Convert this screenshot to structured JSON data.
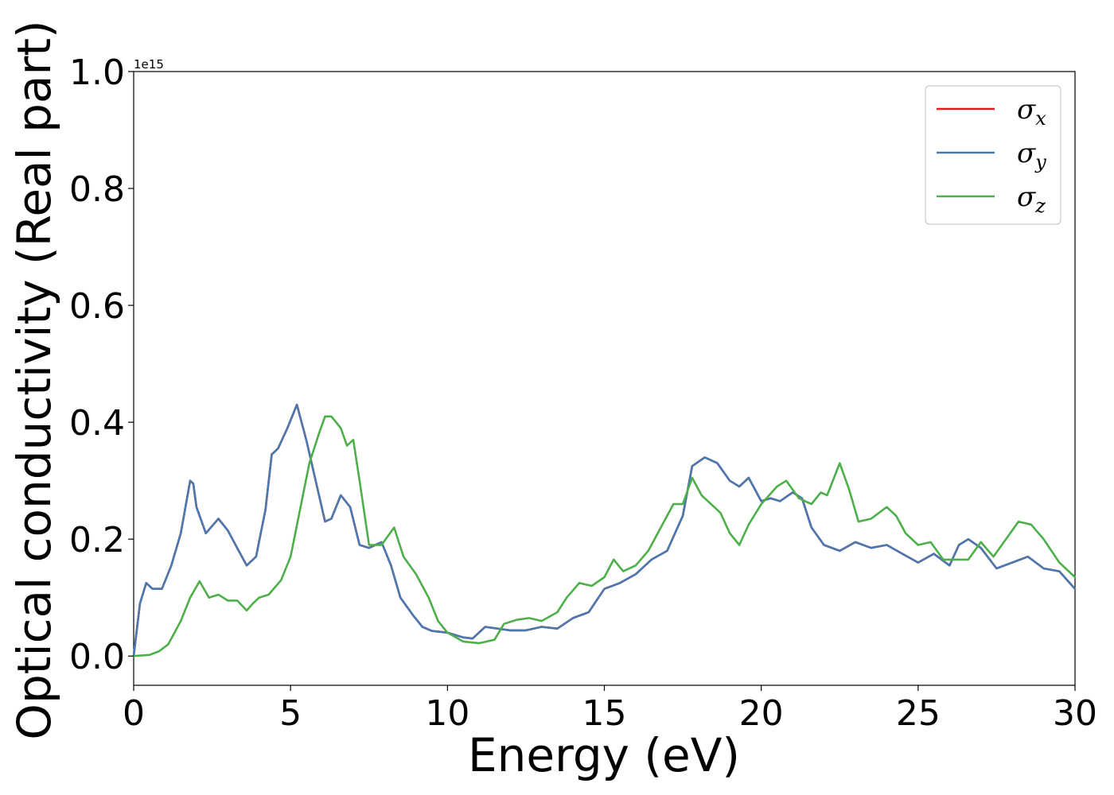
{
  "chart_data": {
    "type": "line",
    "xlabel": "Energy (eV)",
    "ylabel": "Optical conductivity (Real part)",
    "y_offset_text": "1e15",
    "xlim": [
      0,
      30
    ],
    "ylim": [
      -0.05,
      1.0
    ],
    "xticks": [
      0,
      5,
      10,
      15,
      20,
      25,
      30
    ],
    "xtick_labels": [
      "0",
      "5",
      "10",
      "15",
      "20",
      "25",
      "30"
    ],
    "yticks": [
      0.0,
      0.2,
      0.4,
      0.6,
      0.8,
      1.0
    ],
    "ytick_labels": [
      "0.0",
      "0.2",
      "0.4",
      "0.6",
      "0.8",
      "1.0"
    ],
    "grid": false,
    "legend_position": "top-right",
    "series": [
      {
        "name": "σ",
        "subscript": "x",
        "color": "#e41a1c",
        "x": [
          0,
          0.2,
          0.4,
          0.6,
          0.9,
          1.2,
          1.5,
          1.8,
          1.9,
          2.0,
          2.3,
          2.7,
          3.0,
          3.3,
          3.6,
          3.9,
          4.2,
          4.4,
          4.6,
          4.9,
          5.2,
          5.5,
          5.8,
          6.1,
          6.3,
          6.6,
          6.9,
          7.2,
          7.5,
          7.9,
          8.2,
          8.5,
          8.9,
          9.2,
          9.5,
          10.0,
          10.5,
          10.8,
          11.2,
          11.6,
          12.0,
          12.5,
          13.0,
          13.5,
          14.0,
          14.5,
          15.0,
          15.5,
          16.0,
          16.5,
          17.0,
          17.5,
          17.8,
          18.2,
          18.6,
          19.0,
          19.3,
          19.6,
          20.0,
          20.3,
          20.6,
          21.0,
          21.3,
          21.6,
          22.0,
          22.5,
          23.0,
          23.5,
          24.0,
          24.5,
          25.0,
          25.5,
          26.0,
          26.3,
          26.6,
          27.0,
          27.5,
          28.0,
          28.5,
          29.0,
          29.5,
          30.0
        ],
        "values": [
          0.0,
          0.09,
          0.125,
          0.115,
          0.115,
          0.155,
          0.21,
          0.3,
          0.295,
          0.255,
          0.21,
          0.235,
          0.215,
          0.185,
          0.155,
          0.17,
          0.25,
          0.345,
          0.355,
          0.39,
          0.43,
          0.37,
          0.3,
          0.23,
          0.235,
          0.275,
          0.255,
          0.19,
          0.185,
          0.195,
          0.155,
          0.1,
          0.07,
          0.05,
          0.043,
          0.04,
          0.032,
          0.03,
          0.05,
          0.047,
          0.044,
          0.044,
          0.05,
          0.047,
          0.065,
          0.075,
          0.115,
          0.125,
          0.14,
          0.165,
          0.18,
          0.24,
          0.325,
          0.34,
          0.33,
          0.3,
          0.29,
          0.305,
          0.265,
          0.27,
          0.265,
          0.28,
          0.27,
          0.22,
          0.19,
          0.18,
          0.195,
          0.185,
          0.19,
          0.175,
          0.16,
          0.175,
          0.155,
          0.19,
          0.2,
          0.185,
          0.15,
          0.16,
          0.17,
          0.15,
          0.145,
          0.115
        ]
      },
      {
        "name": "σ",
        "subscript": "y",
        "color": "#4a78b0",
        "x": [
          0,
          0.2,
          0.4,
          0.6,
          0.9,
          1.2,
          1.5,
          1.8,
          1.9,
          2.0,
          2.3,
          2.7,
          3.0,
          3.3,
          3.6,
          3.9,
          4.2,
          4.4,
          4.6,
          4.9,
          5.2,
          5.5,
          5.8,
          6.1,
          6.3,
          6.6,
          6.9,
          7.2,
          7.5,
          7.9,
          8.2,
          8.5,
          8.9,
          9.2,
          9.5,
          10.0,
          10.5,
          10.8,
          11.2,
          11.6,
          12.0,
          12.5,
          13.0,
          13.5,
          14.0,
          14.5,
          15.0,
          15.5,
          16.0,
          16.5,
          17.0,
          17.5,
          17.8,
          18.2,
          18.6,
          19.0,
          19.3,
          19.6,
          20.0,
          20.3,
          20.6,
          21.0,
          21.3,
          21.6,
          22.0,
          22.5,
          23.0,
          23.5,
          24.0,
          24.5,
          25.0,
          25.5,
          26.0,
          26.3,
          26.6,
          27.0,
          27.5,
          28.0,
          28.5,
          29.0,
          29.5,
          30.0
        ],
        "values": [
          0.0,
          0.09,
          0.125,
          0.115,
          0.115,
          0.155,
          0.21,
          0.3,
          0.295,
          0.255,
          0.21,
          0.235,
          0.215,
          0.185,
          0.155,
          0.17,
          0.25,
          0.345,
          0.355,
          0.39,
          0.43,
          0.37,
          0.3,
          0.23,
          0.235,
          0.275,
          0.255,
          0.19,
          0.185,
          0.195,
          0.155,
          0.1,
          0.07,
          0.05,
          0.043,
          0.04,
          0.032,
          0.03,
          0.05,
          0.047,
          0.044,
          0.044,
          0.05,
          0.047,
          0.065,
          0.075,
          0.115,
          0.125,
          0.14,
          0.165,
          0.18,
          0.24,
          0.325,
          0.34,
          0.33,
          0.3,
          0.29,
          0.305,
          0.265,
          0.27,
          0.265,
          0.28,
          0.27,
          0.22,
          0.19,
          0.18,
          0.195,
          0.185,
          0.19,
          0.175,
          0.16,
          0.175,
          0.155,
          0.19,
          0.2,
          0.185,
          0.15,
          0.16,
          0.17,
          0.15,
          0.145,
          0.115
        ]
      },
      {
        "name": "σ",
        "subscript": "z",
        "color": "#4daf4a",
        "x": [
          0,
          0.5,
          0.8,
          1.1,
          1.5,
          1.8,
          2.1,
          2.4,
          2.7,
          3.0,
          3.3,
          3.6,
          3.8,
          4.0,
          4.3,
          4.7,
          5.0,
          5.3,
          5.6,
          5.9,
          6.1,
          6.3,
          6.6,
          6.8,
          7.0,
          7.2,
          7.5,
          7.9,
          8.3,
          8.6,
          9.0,
          9.4,
          9.7,
          10.0,
          10.5,
          11.0,
          11.5,
          11.8,
          12.2,
          12.6,
          13.0,
          13.5,
          13.8,
          14.2,
          14.6,
          15.0,
          15.3,
          15.6,
          16.0,
          16.4,
          16.8,
          17.2,
          17.5,
          17.8,
          18.1,
          18.4,
          18.7,
          19.0,
          19.3,
          19.6,
          20.0,
          20.5,
          20.8,
          21.2,
          21.6,
          21.9,
          22.1,
          22.5,
          22.8,
          23.1,
          23.5,
          24.0,
          24.3,
          24.6,
          25.0,
          25.4,
          25.8,
          26.2,
          26.6,
          27.0,
          27.4,
          27.8,
          28.2,
          28.6,
          29.0,
          29.5,
          30.0
        ],
        "values": [
          0.0,
          0.002,
          0.008,
          0.02,
          0.06,
          0.1,
          0.128,
          0.1,
          0.105,
          0.095,
          0.095,
          0.078,
          0.09,
          0.1,
          0.105,
          0.13,
          0.17,
          0.25,
          0.33,
          0.38,
          0.41,
          0.41,
          0.39,
          0.36,
          0.37,
          0.3,
          0.19,
          0.19,
          0.22,
          0.17,
          0.14,
          0.1,
          0.06,
          0.04,
          0.025,
          0.022,
          0.028,
          0.055,
          0.062,
          0.065,
          0.06,
          0.075,
          0.1,
          0.125,
          0.12,
          0.135,
          0.165,
          0.145,
          0.155,
          0.18,
          0.22,
          0.26,
          0.26,
          0.305,
          0.275,
          0.26,
          0.245,
          0.21,
          0.19,
          0.225,
          0.26,
          0.29,
          0.3,
          0.27,
          0.26,
          0.28,
          0.275,
          0.33,
          0.285,
          0.23,
          0.235,
          0.255,
          0.24,
          0.21,
          0.19,
          0.195,
          0.165,
          0.165,
          0.165,
          0.195,
          0.17,
          0.2,
          0.23,
          0.225,
          0.2,
          0.16,
          0.135
        ]
      }
    ]
  }
}
